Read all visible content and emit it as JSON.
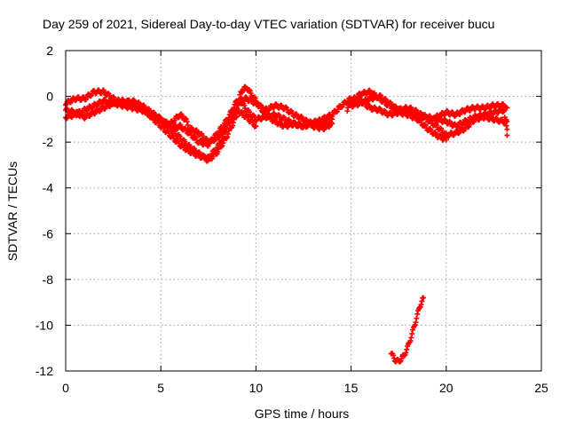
{
  "chart_data": {
    "type": "scatter",
    "title": "Day 259 of 2021, Sidereal Day-to-day VTEC variation (SDTVAR) for receiver bucu",
    "xlabel": "GPS time / hours",
    "ylabel": "SDTVAR / TECUs",
    "xlim": [
      0,
      25
    ],
    "ylim": [
      -12,
      2
    ],
    "xticks": [
      0,
      5,
      10,
      15,
      20,
      25
    ],
    "yticks": [
      -12,
      -10,
      -8,
      -6,
      -4,
      -2,
      0,
      2
    ],
    "grid": true,
    "marker": "plus",
    "color": "#ff0000",
    "series": [
      {
        "name": "track-a",
        "points": [
          [
            0.0,
            -0.6
          ],
          [
            0.5,
            -0.7
          ],
          [
            1.0,
            -0.9
          ],
          [
            1.5,
            -0.7
          ],
          [
            2.0,
            -0.5
          ],
          [
            2.5,
            -0.3
          ],
          [
            3.0,
            -0.2
          ],
          [
            3.5,
            -0.3
          ],
          [
            4.0,
            -0.5
          ],
          [
            4.5,
            -0.9
          ],
          [
            5.0,
            -1.3
          ],
          [
            5.5,
            -1.7
          ],
          [
            6.0,
            -2.1
          ],
          [
            6.5,
            -2.4
          ],
          [
            7.0,
            -2.6
          ],
          [
            7.5,
            -2.7
          ],
          [
            8.0,
            -2.2
          ],
          [
            8.5,
            -1.3
          ],
          [
            9.0,
            -0.5
          ],
          [
            9.2,
            -0.2
          ],
          [
            9.5,
            -0.6
          ],
          [
            10.0,
            -1.0
          ],
          [
            10.5,
            -0.9
          ],
          [
            11.0,
            -0.8
          ],
          [
            11.5,
            -1.0
          ],
          [
            12.0,
            -1.2
          ],
          [
            12.5,
            -1.3
          ],
          [
            13.0,
            -1.2
          ],
          [
            13.5,
            -1.0
          ],
          [
            14.0,
            -0.8
          ],
          [
            14.5,
            -0.4
          ],
          [
            15.0,
            -0.1
          ],
          [
            15.5,
            -0.2
          ],
          [
            16.0,
            -0.5
          ],
          [
            16.5,
            -0.6
          ],
          [
            17.0,
            -0.8
          ],
          [
            17.5,
            -0.7
          ],
          [
            18.0,
            -0.8
          ],
          [
            18.5,
            -1.0
          ],
          [
            19.0,
            -1.4
          ],
          [
            19.5,
            -1.7
          ],
          [
            20.0,
            -1.9
          ]
        ]
      },
      {
        "name": "track-b",
        "points": [
          [
            0.0,
            -0.3
          ],
          [
            0.5,
            -0.1
          ],
          [
            1.0,
            -0.1
          ],
          [
            1.5,
            0.2
          ],
          [
            2.0,
            0.2
          ],
          [
            2.5,
            -0.1
          ],
          [
            3.0,
            -0.3
          ],
          [
            3.5,
            -0.2
          ],
          [
            4.0,
            -0.4
          ],
          [
            4.5,
            -0.7
          ],
          [
            5.0,
            -1.0
          ],
          [
            5.5,
            -1.4
          ],
          [
            6.0,
            -1.8
          ],
          [
            6.5,
            -2.2
          ],
          [
            7.0,
            -2.5
          ],
          [
            7.5,
            -2.8
          ],
          [
            8.0,
            -2.4
          ],
          [
            8.5,
            -1.7
          ],
          [
            9.0,
            -0.8
          ],
          [
            9.2,
            0.2
          ],
          [
            9.5,
            0.4
          ],
          [
            10.0,
            -0.2
          ],
          [
            10.5,
            -0.8
          ],
          [
            11.0,
            -1.1
          ],
          [
            11.5,
            -1.3
          ],
          [
            12.0,
            -1.2
          ],
          [
            12.5,
            -1.3
          ],
          [
            13.0,
            -1.1
          ],
          [
            13.5,
            -1.2
          ],
          [
            14.0,
            -1.0
          ]
        ]
      },
      {
        "name": "track-c",
        "points": [
          [
            0.0,
            -0.9
          ],
          [
            0.5,
            -0.8
          ],
          [
            1.0,
            -0.6
          ],
          [
            1.5,
            -0.4
          ],
          [
            2.0,
            -0.2
          ],
          [
            3.0,
            -0.4
          ],
          [
            4.0,
            -0.6
          ],
          [
            5.0,
            -1.0
          ],
          [
            5.5,
            -1.4
          ],
          [
            6.0,
            -1.3
          ],
          [
            6.5,
            -1.6
          ],
          [
            7.0,
            -2.0
          ],
          [
            7.5,
            -2.1
          ],
          [
            8.0,
            -1.6
          ],
          [
            8.5,
            -1.0
          ],
          [
            9.0,
            -0.2
          ],
          [
            9.5,
            -0.1
          ],
          [
            10.0,
            -0.3
          ],
          [
            10.5,
            -0.6
          ],
          [
            11.0,
            -0.4
          ],
          [
            11.5,
            -0.5
          ],
          [
            12.0,
            -0.8
          ],
          [
            12.5,
            -1.0
          ],
          [
            13.0,
            -1.3
          ],
          [
            13.5,
            -1.4
          ],
          [
            14.0,
            -1.2
          ]
        ]
      },
      {
        "name": "track-d",
        "points": [
          [
            5.0,
            -1.1
          ],
          [
            5.5,
            -1.2
          ],
          [
            6.0,
            -0.8
          ],
          [
            6.3,
            -1.0
          ],
          [
            6.5,
            -1.4
          ],
          [
            7.0,
            -1.6
          ],
          [
            7.5,
            -2.0
          ],
          [
            8.0,
            -1.8
          ],
          [
            8.5,
            -1.2
          ],
          [
            9.0,
            -0.6
          ],
          [
            9.5,
            -0.9
          ],
          [
            10.0,
            -1.3
          ]
        ]
      },
      {
        "name": "track-e",
        "points": [
          [
            14.8,
            -0.6
          ],
          [
            15.0,
            -0.2
          ],
          [
            15.5,
            0.1
          ],
          [
            16.0,
            0.2
          ],
          [
            16.5,
            -0.1
          ],
          [
            17.0,
            -0.4
          ],
          [
            17.5,
            -0.6
          ],
          [
            18.0,
            -0.6
          ],
          [
            18.5,
            -0.8
          ],
          [
            19.0,
            -0.9
          ],
          [
            19.5,
            -1.0
          ],
          [
            20.0,
            -1.1
          ],
          [
            20.5,
            -1.3
          ],
          [
            21.0,
            -1.1
          ],
          [
            21.5,
            -0.9
          ],
          [
            22.0,
            -0.8
          ],
          [
            22.5,
            -0.7
          ],
          [
            23.0,
            -0.6
          ],
          [
            23.2,
            -0.5
          ]
        ]
      },
      {
        "name": "track-f",
        "points": [
          [
            15.0,
            -0.4
          ],
          [
            15.5,
            -0.3
          ],
          [
            16.0,
            -0.1
          ],
          [
            16.5,
            0.0
          ],
          [
            17.0,
            -0.3
          ],
          [
            17.5,
            -0.6
          ],
          [
            18.0,
            -0.5
          ],
          [
            18.5,
            -0.7
          ],
          [
            19.0,
            -1.0
          ],
          [
            19.5,
            -1.3
          ],
          [
            20.0,
            -1.7
          ],
          [
            20.5,
            -1.6
          ],
          [
            21.0,
            -1.4
          ],
          [
            21.5,
            -1.0
          ],
          [
            22.0,
            -0.9
          ],
          [
            22.5,
            -1.0
          ],
          [
            23.0,
            -1.1
          ],
          [
            23.2,
            -1.1
          ]
        ]
      },
      {
        "name": "track-g",
        "points": [
          [
            19.5,
            -0.9
          ],
          [
            20.0,
            -0.7
          ],
          [
            20.5,
            -0.8
          ],
          [
            21.0,
            -0.6
          ],
          [
            21.5,
            -0.5
          ],
          [
            22.0,
            -0.5
          ],
          [
            22.5,
            -0.4
          ],
          [
            23.0,
            -0.4
          ],
          [
            23.2,
            -1.5
          ],
          [
            23.2,
            -1.7
          ]
        ]
      },
      {
        "name": "track-h",
        "points": [
          [
            17.1,
            -11.2
          ],
          [
            17.3,
            -11.5
          ],
          [
            17.5,
            -11.6
          ],
          [
            17.8,
            -11.3
          ],
          [
            18.0,
            -10.9
          ],
          [
            18.2,
            -10.4
          ],
          [
            18.4,
            -9.8
          ],
          [
            18.6,
            -9.2
          ],
          [
            18.8,
            -8.8
          ]
        ]
      }
    ]
  }
}
